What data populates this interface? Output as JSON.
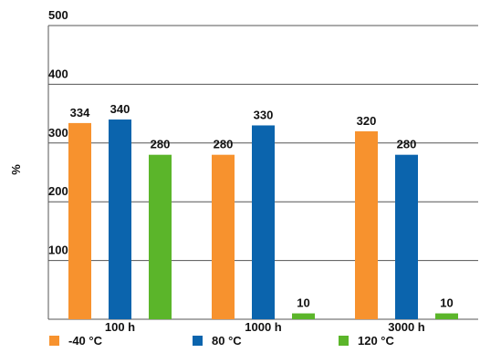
{
  "chart_data": {
    "type": "bar",
    "categories": [
      "100 h",
      "1000 h",
      "3000 h"
    ],
    "series": [
      {
        "name": "-40 °C",
        "color": "#f7922e",
        "values": [
          334,
          280,
          320
        ]
      },
      {
        "name": "80 °C",
        "color": "#0b64ad",
        "values": [
          340,
          330,
          280
        ]
      },
      {
        "name": "120 °C",
        "color": "#5bb52a",
        "values": [
          280,
          10,
          10
        ]
      }
    ],
    "title": "",
    "xlabel": "",
    "ylabel": "%",
    "ylim": [
      0,
      500
    ],
    "yticks": [
      100,
      200,
      300,
      400,
      500
    ],
    "grid": true,
    "legend_position": "bottom"
  }
}
